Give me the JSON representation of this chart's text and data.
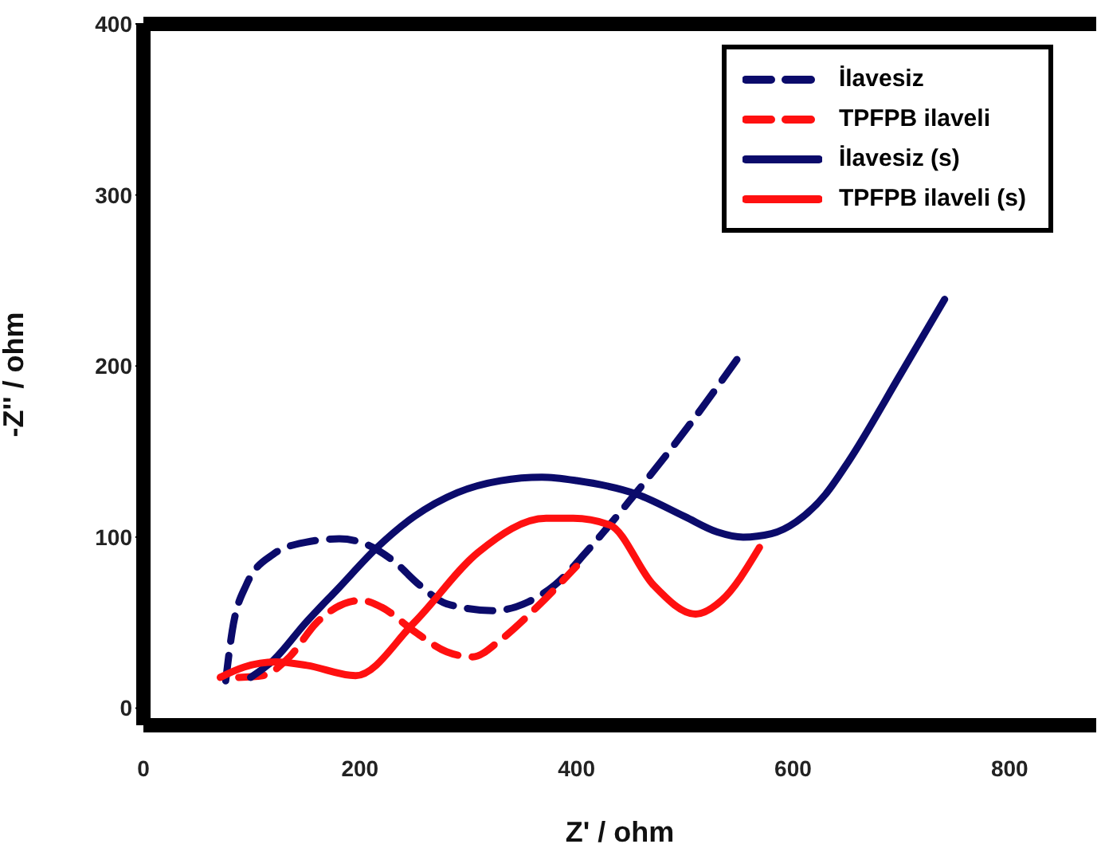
{
  "chart_data": {
    "type": "line",
    "xlabel": "Z' / ohm",
    "ylabel": "-Z'' / ohm",
    "xlim": [
      0,
      880
    ],
    "xticks": [
      0,
      200,
      400,
      600,
      800
    ],
    "ylim": [
      -10,
      400
    ],
    "yticks": [
      0,
      100,
      200,
      300,
      400
    ],
    "legend": "top right",
    "marker": "none",
    "series": [
      {
        "name": "İlavesiz",
        "color": "#0b0b6b",
        "line_style": "dashed",
        "x": [
          76,
          82,
          95,
          120,
          150,
          181,
          205,
          231,
          255,
          280,
          324,
          355,
          380,
          410,
          450,
          500,
          554
        ],
        "values": [
          16,
          45,
          72,
          90,
          97,
          99,
          96,
          86,
          72,
          61,
          57,
          62,
          72,
          92,
          122,
          162,
          209
        ]
      },
      {
        "name": "TPFPB ilaveli",
        "color": "#ff1010",
        "line_style": "dashed",
        "x": [
          88,
          110,
          135,
          160,
          190,
          201,
          220,
          250,
          280,
          304,
          330,
          360,
          400
        ],
        "values": [
          18,
          19,
          30,
          50,
          62,
          63,
          59,
          45,
          33,
          30,
          40,
          57,
          83
        ]
      },
      {
        "name": "İlavesiz (s)",
        "color": "#0b0b6b",
        "line_style": "solid",
        "x": [
          99,
          120,
          150,
          180,
          216,
          250,
          290,
          330,
          368,
          400,
          456,
          500,
          530,
          554,
          580,
          603,
          630,
          651,
          700,
          740
        ],
        "values": [
          18,
          28,
          50,
          70,
          94,
          112,
          126,
          133,
          135,
          133,
          125,
          112,
          103,
          100,
          102,
          109,
          125,
          144,
          196,
          239
        ]
      },
      {
        "name": "TPFPB ilaveli (s)",
        "color": "#ff1010",
        "line_style": "solid",
        "x": [
          71,
          93,
          122,
          151,
          196,
          250,
          309,
          372,
          397,
          431,
          471,
          510,
          534,
          569
        ],
        "values": [
          18,
          24,
          27,
          25,
          19,
          50,
          91,
          111,
          111,
          107,
          72,
          55,
          63,
          94
        ]
      }
    ]
  }
}
